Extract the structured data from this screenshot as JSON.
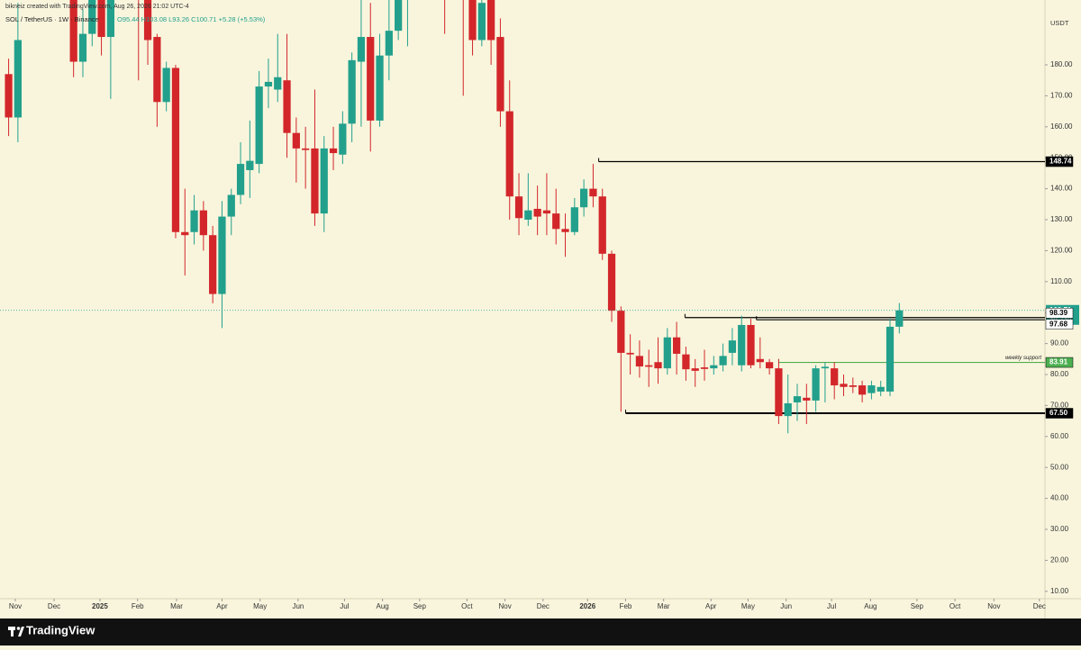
{
  "header": {
    "attribution": "bikneiz created with TradingView.com, Aug 26, 2026 21:02 UTC-4",
    "symbol": "SOL / TetherUS · 1W · Binance",
    "ohlc": "O95.44 H103.08 L93.26 C100.71 +5.28 (+5.53%)"
  },
  "chart_data": {
    "type": "candlestick",
    "candles": {
      "open": [
        177,
        163,
        205,
        235,
        240,
        225,
        218,
        203,
        181,
        190,
        215,
        189,
        250,
        260,
        235,
        210,
        189,
        168,
        179,
        126,
        126,
        133,
        125,
        106,
        131,
        138,
        146,
        148,
        173,
        172,
        175,
        158,
        153,
        153,
        132,
        153,
        151,
        161,
        181,
        189,
        162,
        183,
        191,
        205,
        208,
        210,
        240,
        230,
        205,
        225,
        210,
        188,
        212,
        189,
        165,
        137.5,
        130,
        133.5,
        133,
        132,
        127,
        126,
        134,
        140,
        137.5,
        119,
        100.6,
        87,
        86,
        83,
        84,
        82,
        92,
        86.5,
        82,
        82.3,
        82,
        83,
        87,
        83,
        96,
        85,
        84,
        82,
        66.6,
        71,
        72.5,
        71.6,
        82,
        82,
        77,
        76.5,
        76.5,
        74,
        74.5,
        74.5,
        95.44
      ],
      "high": [
        182,
        200,
        248,
        264,
        245,
        232,
        222,
        220,
        198,
        220,
        225,
        295,
        280,
        270,
        245,
        220,
        190,
        181,
        180,
        140,
        138,
        136,
        128,
        136,
        140,
        155,
        162,
        178,
        182,
        190,
        190,
        163,
        160,
        172,
        157,
        160,
        165,
        184,
        205,
        200,
        190,
        202,
        215,
        215,
        218,
        250,
        253,
        240,
        235,
        240,
        230,
        215,
        220,
        195,
        175,
        145,
        145,
        141,
        145,
        140,
        132,
        137,
        143,
        148,
        140,
        120,
        102,
        93,
        91,
        88,
        92,
        95,
        97,
        89,
        85,
        88,
        86,
        90,
        95,
        99,
        98,
        92,
        85,
        85,
        80,
        77,
        77,
        83,
        84,
        84,
        80,
        79,
        78,
        78,
        78,
        98,
        103.08
      ],
      "low": [
        157,
        155,
        202,
        220,
        215,
        205,
        201,
        176,
        176,
        186,
        183,
        169,
        230,
        215,
        175,
        180,
        160,
        165,
        124,
        112,
        122,
        120,
        103,
        95,
        125,
        135,
        137,
        145,
        166,
        168,
        150,
        142,
        140,
        128,
        126,
        146,
        148,
        155,
        160,
        152,
        160,
        175,
        188,
        186,
        202,
        205,
        220,
        190,
        202,
        170,
        183,
        186,
        180,
        160,
        130,
        125,
        128,
        125,
        125,
        122,
        118,
        125,
        131,
        134,
        117,
        97,
        68,
        80,
        79,
        76,
        77,
        80,
        80,
        78,
        76,
        78,
        80,
        81,
        83,
        81,
        82,
        82,
        80,
        64,
        61,
        65,
        64,
        68,
        71,
        72,
        73,
        74,
        71,
        72,
        73,
        73,
        93.26
      ],
      "close": [
        163,
        188,
        235,
        240,
        225,
        218,
        203,
        181,
        190,
        210,
        189,
        250,
        260,
        235,
        210,
        188,
        168,
        179,
        126,
        125,
        133,
        125,
        106,
        131,
        138,
        148,
        149,
        173,
        174.5,
        176,
        158,
        153,
        152.5,
        132,
        153,
        151.5,
        161,
        181.5,
        189,
        162,
        183,
        191,
        205,
        208,
        210,
        240,
        230,
        205,
        225,
        210,
        188,
        200,
        188,
        165,
        137.5,
        130.5,
        133,
        131,
        132,
        127,
        126,
        134,
        140,
        137.5,
        119,
        100.6,
        87,
        86.5,
        82.6,
        82.5,
        82,
        92,
        86.7,
        81.7,
        81.2,
        81.8,
        83,
        86,
        91,
        96,
        83,
        84,
        82,
        66.6,
        70.7,
        73,
        71.6,
        82,
        82.5,
        76.5,
        76,
        76,
        73.5,
        76.5,
        76,
        95.43,
        100.71
      ]
    },
    "colors": {
      "up": "#22a08c",
      "down": "#d3262a"
    },
    "ylim": [
      7.62,
      200.93
    ],
    "yticks": [
      {
        "value": 10,
        "label": "10.00"
      },
      {
        "value": 20,
        "label": "20.00"
      },
      {
        "value": 30,
        "label": "30.00"
      },
      {
        "value": 40,
        "label": "40.00"
      },
      {
        "value": 50,
        "label": "50.00"
      },
      {
        "value": 60,
        "label": "60.00"
      },
      {
        "value": 70,
        "label": "70.00"
      },
      {
        "value": 80,
        "label": "80.00"
      },
      {
        "value": 90,
        "label": "90.00"
      },
      {
        "value": 100,
        "label": "100.00"
      },
      {
        "value": 110,
        "label": "110.00"
      },
      {
        "value": 120,
        "label": "120.00"
      },
      {
        "value": 130,
        "label": "130.00"
      },
      {
        "value": 140,
        "label": "140.00"
      },
      {
        "value": 150,
        "label": "150.00"
      },
      {
        "value": 160,
        "label": "160.00"
      },
      {
        "value": 170,
        "label": "170.00"
      },
      {
        "value": 180,
        "label": "180.00"
      }
    ],
    "y_unit": "USDT",
    "xlim": [
      -0.93,
      111.7
    ],
    "xticks": [
      {
        "value": 0.72,
        "label": "Nov"
      },
      {
        "value": 4.9,
        "label": "Dec"
      },
      {
        "value": 9.84,
        "label": "2025"
      },
      {
        "value": 13.9,
        "label": "Feb"
      },
      {
        "value": 18.1,
        "label": "Mar"
      },
      {
        "value": 23,
        "label": "Apr"
      },
      {
        "value": 27.1,
        "label": "May"
      },
      {
        "value": 31.2,
        "label": "Jun"
      },
      {
        "value": 36.2,
        "label": "Jul"
      },
      {
        "value": 40.3,
        "label": "Aug"
      },
      {
        "value": 44.3,
        "label": "Sep"
      },
      {
        "value": 49.4,
        "label": "Oct"
      },
      {
        "value": 53.5,
        "label": "Nov"
      },
      {
        "value": 57.6,
        "label": "Dec"
      },
      {
        "value": 62.4,
        "label": "2026"
      },
      {
        "value": 66.5,
        "label": "Feb"
      },
      {
        "value": 70.6,
        "label": "Mar"
      },
      {
        "value": 75.7,
        "label": "Apr"
      },
      {
        "value": 79.7,
        "label": "May"
      },
      {
        "value": 83.8,
        "label": "Jun"
      },
      {
        "value": 88.7,
        "label": "Jul"
      },
      {
        "value": 92.9,
        "label": "Aug"
      },
      {
        "value": 97.9,
        "label": "Sep"
      },
      {
        "value": 102,
        "label": "Oct"
      },
      {
        "value": 106.2,
        "label": "Nov"
      },
      {
        "value": 111.1,
        "label": "Dec"
      }
    ],
    "levels": [
      {
        "value": 148.74,
        "start": 63.6,
        "color": "#000000",
        "label_bg": "#000000",
        "label_color": "#ffffff"
      },
      {
        "value": 98.39,
        "start": 72.9,
        "color": "#000000",
        "label_bg": "#ffffff",
        "label_color": "#000000"
      },
      {
        "value": 97.68,
        "start": 80.6,
        "color": "#000000",
        "label_bg": "#ffffff",
        "label_color": "#000000"
      },
      {
        "value": 83.91,
        "start": 83,
        "color": "#4caf50",
        "label_bg": "#4caf50",
        "label_color": "#ffffff",
        "note": "weekly support"
      },
      {
        "value": 67.5,
        "value_label": "67.50",
        "start": 66.5,
        "color": "#000000",
        "label_bg": "#000000",
        "label_color": "#ffffff"
      }
    ],
    "countdown": "3d 23h"
  },
  "footer": {
    "brand": "TradingView"
  }
}
